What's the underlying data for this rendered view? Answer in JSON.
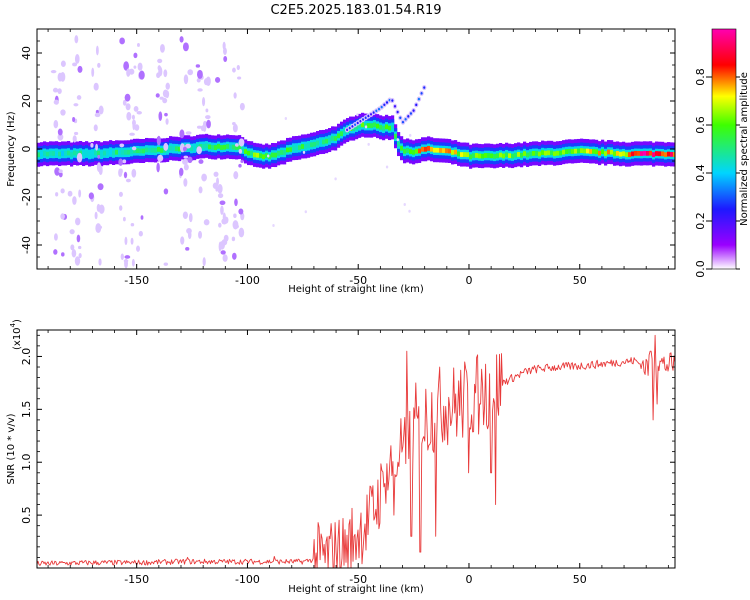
{
  "title": "C2E5.2025.183.01.54.R19",
  "chart_data": [
    {
      "type": "heatmap",
      "xlabel": "Height of straight line (km)",
      "ylabel": "Frequency (Hz)",
      "xlim": [
        -195,
        93
      ],
      "ylim": [
        -50,
        50
      ],
      "x_ticks": [
        -150,
        -100,
        -50,
        0,
        50
      ],
      "y_ticks": [
        -40,
        -20,
        0,
        20,
        40
      ],
      "colorbar": {
        "label": "Normalized spectral amplitude",
        "range": [
          0,
          1
        ],
        "ticks": [
          0.0,
          0.2,
          0.4,
          0.6,
          0.8
        ]
      },
      "ridge": {
        "x": [
          -195,
          -170,
          -150,
          -120,
          -105,
          -97,
          -90,
          -80,
          -70,
          -60,
          -55,
          -50,
          -45,
          -40,
          -35,
          -33,
          -30,
          -25,
          -20,
          -10,
          0,
          10,
          30,
          50,
          70,
          80,
          93
        ],
        "frequency": [
          -2,
          -2,
          -1,
          1,
          1,
          -3,
          -3,
          0,
          2,
          5,
          8,
          10,
          10,
          9,
          9,
          3,
          -1,
          -1,
          0,
          -1,
          -3,
          -3,
          -2,
          -1,
          -2,
          -2,
          -2
        ],
        "amplitude": [
          0.45,
          0.45,
          0.5,
          0.5,
          0.5,
          0.6,
          0.55,
          0.5,
          0.5,
          0.5,
          0.55,
          0.55,
          0.55,
          0.55,
          0.5,
          0.55,
          0.55,
          0.7,
          0.75,
          0.7,
          0.6,
          0.6,
          0.6,
          0.65,
          0.75,
          0.9,
          0.9
        ]
      },
      "branch": {
        "x": [
          -55,
          -45,
          -40,
          -35,
          -30,
          -25,
          -20
        ],
        "frequency": [
          8,
          14,
          17,
          21,
          11,
          16,
          26
        ]
      }
    },
    {
      "type": "line",
      "xlabel": "Height of straight line (km)",
      "ylabel": "SNR (10 * v/v)",
      "y_multiplier": "(x10",
      "y_multiplier_exp": "4",
      "xlim": [
        -195,
        93
      ],
      "ylim": [
        0,
        2.25
      ],
      "x_ticks": [
        -150,
        -100,
        -50,
        0,
        50
      ],
      "y_ticks": [
        0.5,
        1.0,
        1.5,
        2.0
      ],
      "line_color": "#e83a3a",
      "envelope": {
        "x": [
          -195,
          -170,
          -150,
          -130,
          -110,
          -90,
          -75,
          -65,
          -55,
          -50,
          -45,
          -40,
          -35,
          -30,
          -28,
          -25,
          -20,
          -15,
          -10,
          -5,
          0,
          5,
          10,
          15,
          20,
          25,
          30,
          40,
          50,
          60,
          70,
          75,
          78,
          80,
          82,
          85,
          88,
          93
        ],
        "values": [
          0.04,
          0.05,
          0.05,
          0.06,
          0.06,
          0.06,
          0.06,
          0.1,
          0.2,
          0.35,
          0.45,
          0.7,
          0.95,
          1.1,
          1.15,
          1.3,
          1.4,
          1.5,
          1.55,
          1.55,
          1.6,
          1.65,
          1.7,
          1.75,
          1.8,
          1.85,
          1.88,
          1.9,
          1.91,
          1.93,
          1.95,
          1.96,
          1.92,
          1.9,
          1.9,
          1.95,
          1.92,
          1.92
        ]
      },
      "spikes": {
        "x": [
          -127,
          -88,
          -60,
          -52,
          -45,
          -38,
          -34,
          -32,
          -30,
          -28,
          -26,
          -24,
          -22,
          -20,
          -15,
          -10,
          -5,
          0,
          5,
          10,
          12,
          82,
          83,
          84,
          85
        ],
        "values": [
          0.1,
          0.11,
          0.15,
          0.3,
          0.55,
          0.8,
          0.5,
          1.0,
          1.15,
          2.05,
          0.3,
          1.75,
          0.15,
          1.2,
          0.3,
          1.35,
          1.5,
          0.9,
          1.55,
          0.9,
          0.6,
          2.05,
          1.4,
          2.2,
          1.55
        ]
      }
    }
  ]
}
